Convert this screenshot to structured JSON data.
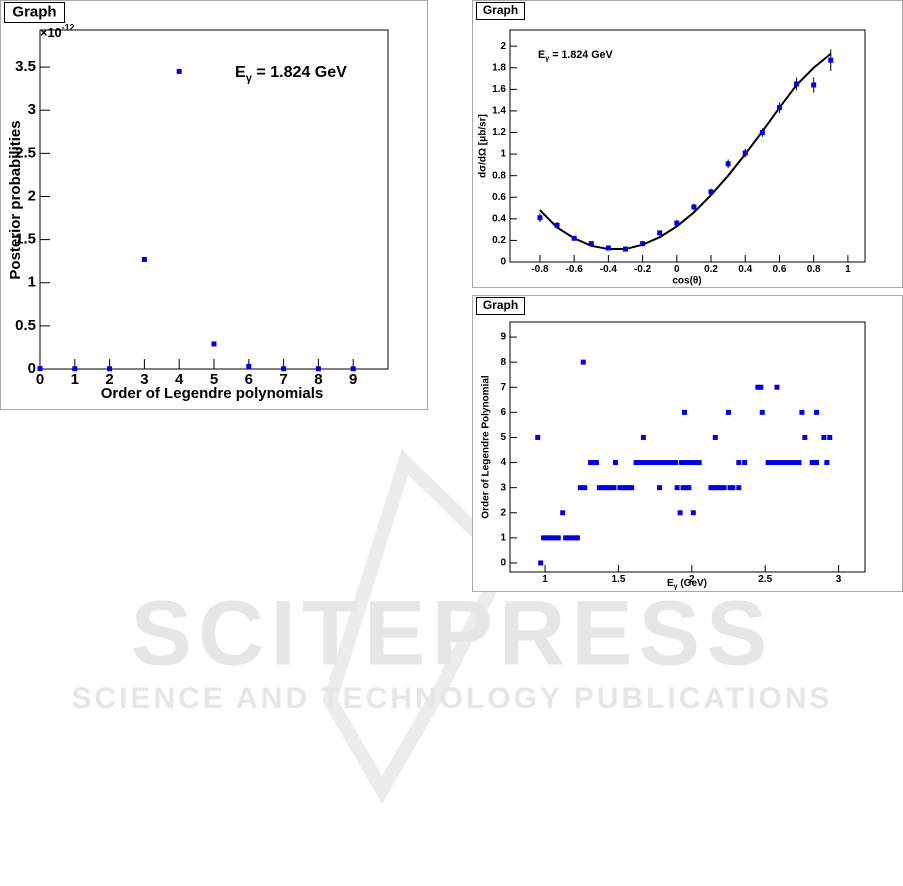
{
  "chart_data": [
    {
      "type": "scatter",
      "panel_label": "Graph",
      "color": "#0000e0",
      "x": [
        0,
        1,
        2,
        3,
        4,
        5,
        6,
        7,
        8,
        9
      ],
      "values": [
        0.005,
        0.003,
        0.003,
        1.27,
        3.45,
        0.29,
        0.03,
        0.003,
        0.003,
        0.003
      ],
      "xlim": [
        0,
        10
      ],
      "xticks": [
        0,
        1,
        2,
        3,
        4,
        5,
        6,
        7,
        8,
        9
      ],
      "ylim": [
        0,
        3.93
      ],
      "yticks": [
        0,
        0.5,
        1,
        1.5,
        2,
        2.5,
        3,
        3.5
      ],
      "y_multiplier": {
        "main": "×10",
        "sup": "-12"
      },
      "annotation": {
        "main": "E",
        "sub": "γ",
        "rest": " = 1.824 GeV"
      },
      "x_label": "Order of Legendre polynomials",
      "y_label": "Posterior probabilities"
    },
    {
      "type": "errorbar",
      "panel_label": "Graph",
      "color": "#0000e0",
      "x": [
        -0.8,
        -0.7,
        -0.6,
        -0.5,
        -0.4,
        -0.3,
        -0.2,
        -0.1,
        0,
        0.1,
        0.2,
        0.3,
        0.4,
        0.5,
        0.6,
        0.7,
        0.8,
        0.9
      ],
      "values": [
        0.41,
        0.34,
        0.22,
        0.17,
        0.13,
        0.12,
        0.17,
        0.27,
        0.36,
        0.51,
        0.65,
        0.91,
        1.01,
        1.2,
        1.43,
        1.65,
        1.64,
        1.87
      ],
      "errors": [
        0.04,
        0.03,
        0.02,
        0.02,
        0.01,
        0.01,
        0.02,
        0.02,
        0.03,
        0.03,
        0.03,
        0.04,
        0.04,
        0.04,
        0.05,
        0.06,
        0.07,
        0.1
      ],
      "fit_values": [
        0.48,
        0.32,
        0.22,
        0.15,
        0.12,
        0.12,
        0.16,
        0.23,
        0.33,
        0.46,
        0.62,
        0.8,
        1.0,
        1.21,
        1.43,
        1.64,
        1.8,
        1.93
      ],
      "fit_color": "#000000",
      "xlim": [
        -0.975,
        1.1
      ],
      "xticks": [
        -0.8,
        -0.6,
        -0.4,
        -0.2,
        0,
        0.2,
        0.4,
        0.6,
        0.8,
        1
      ],
      "ylim": [
        0,
        2.15
      ],
      "yticks": [
        0,
        0.2,
        0.4,
        0.6,
        0.8,
        1,
        1.2,
        1.4,
        1.6,
        1.8,
        2
      ],
      "annotation": {
        "main": "E",
        "sub": "γ",
        "rest": " = 1.824 GeV"
      },
      "x_label": "cos(θ)",
      "y_label": "dσ/dΩ [μb/sr]"
    },
    {
      "type": "scatter",
      "panel_label": "Graph",
      "color": "#0000e0",
      "x": [
        0.97,
        0.99,
        1.01,
        1.03,
        1.05,
        1.07,
        1.09,
        1.14,
        1.16,
        1.18,
        1.2,
        1.22,
        1.12,
        1.92,
        2.01,
        1.24,
        1.27,
        1.37,
        1.39,
        1.41,
        1.43,
        1.45,
        1.47,
        1.51,
        1.53,
        1.55,
        1.57,
        1.59,
        1.78,
        1.9,
        1.94,
        1.96,
        1.98,
        2.13,
        2.15,
        2.17,
        2.2,
        2.22,
        2.26,
        2.28,
        2.32,
        1.31,
        1.33,
        1.35,
        1.48,
        1.62,
        1.65,
        1.68,
        1.71,
        1.74,
        1.77,
        1.8,
        1.83,
        1.86,
        1.89,
        1.93,
        1.96,
        1.99,
        2.02,
        2.05,
        2.32,
        2.36,
        2.52,
        2.55,
        2.58,
        2.61,
        2.64,
        2.67,
        2.7,
        2.73,
        2.82,
        2.85,
        2.92,
        0.95,
        1.67,
        2.16,
        2.77,
        2.9,
        2.94,
        1.95,
        2.25,
        2.48,
        2.75,
        2.85,
        2.45,
        2.47,
        2.58,
        1.26
      ],
      "values": [
        0,
        1,
        1,
        1,
        1,
        1,
        1,
        1,
        1,
        1,
        1,
        1,
        2,
        2,
        2,
        3,
        3,
        3,
        3,
        3,
        3,
        3,
        3,
        3,
        3,
        3,
        3,
        3,
        3,
        3,
        3,
        3,
        3,
        3,
        3,
        3,
        3,
        3,
        3,
        3,
        3,
        4,
        4,
        4,
        4,
        4,
        4,
        4,
        4,
        4,
        4,
        4,
        4,
        4,
        4,
        4,
        4,
        4,
        4,
        4,
        4,
        4,
        4,
        4,
        4,
        4,
        4,
        4,
        4,
        4,
        4,
        4,
        4,
        5,
        5,
        5,
        5,
        5,
        5,
        6,
        6,
        6,
        6,
        6,
        7,
        7,
        7,
        8
      ],
      "xlim": [
        0.761,
        3.18
      ],
      "xticks": [
        1,
        1.5,
        2,
        2.5,
        3
      ],
      "ylim": [
        -0.36,
        9.6
      ],
      "yticks": [
        0,
        1,
        2,
        3,
        4,
        5,
        6,
        7,
        8,
        9
      ],
      "x_label": {
        "main": "E",
        "sub": "γ",
        "rest": " (GeV)"
      },
      "y_label": "Order of Legendre Polynomial"
    }
  ],
  "watermark": {
    "title": "SCITEPRESS",
    "subtitle": "SCIENCE AND TECHNOLOGY PUBLICATIONS"
  }
}
